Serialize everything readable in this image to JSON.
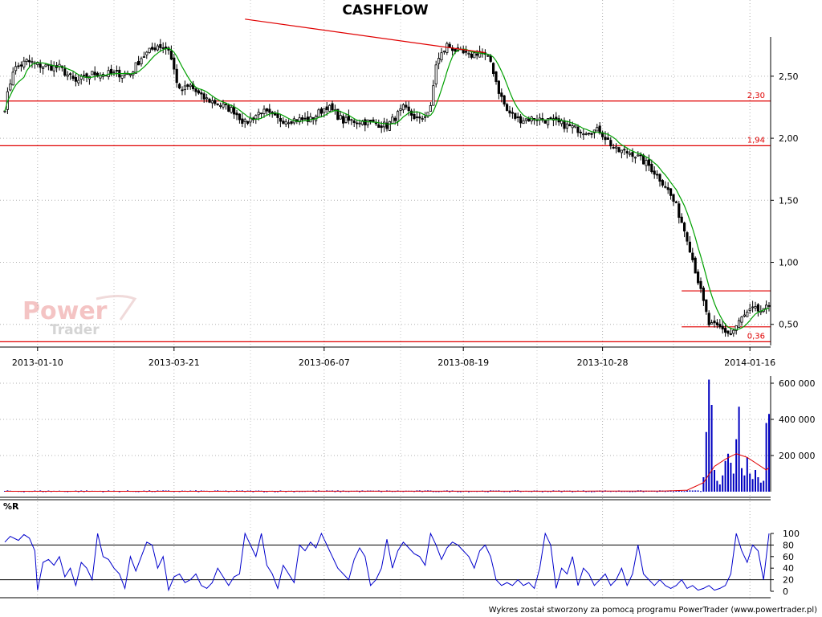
{
  "chart_data": [
    {
      "panel": "price",
      "type": "candlestick",
      "title": "CASHFLOW",
      "ylim": [
        0.33,
        2.92
      ],
      "y_ticks": [
        0.5,
        1.0,
        1.5,
        2.0,
        2.5
      ],
      "y_tick_labels": [
        "0,50",
        "1,00",
        "1,50",
        "2,00",
        "2,50"
      ],
      "x_tick_labels": [
        "2013-01-10",
        "2013-03-21",
        "2013-06-07",
        "2013-08-19",
        "2013-10-28",
        "2014-01-16"
      ],
      "x_tick_sessions": [
        12,
        62,
        117,
        168,
        219,
        273
      ],
      "sessions": 281,
      "grid": true,
      "levels": [
        {
          "label": "2,30",
          "value": 2.3
        },
        {
          "label": "1,94",
          "value": 1.94
        },
        {
          "label": "0,36",
          "value": 0.36
        }
      ],
      "short_levels": [
        {
          "value": 0.77,
          "from_session": 248,
          "to_session": 281
        },
        {
          "value": 0.48,
          "from_session": 248,
          "to_session": 281
        }
      ],
      "trendline": {
        "from": [
          88,
          2.96
        ],
        "to": [
          176,
          2.69
        ]
      },
      "close_waypoints": [
        [
          0,
          2.25
        ],
        [
          3,
          2.55
        ],
        [
          8,
          2.62
        ],
        [
          14,
          2.58
        ],
        [
          20,
          2.57
        ],
        [
          26,
          2.45
        ],
        [
          32,
          2.52
        ],
        [
          40,
          2.52
        ],
        [
          46,
          2.52
        ],
        [
          50,
          2.65
        ],
        [
          56,
          2.75
        ],
        [
          60,
          2.72
        ],
        [
          64,
          2.38
        ],
        [
          68,
          2.42
        ],
        [
          72,
          2.33
        ],
        [
          78,
          2.28
        ],
        [
          84,
          2.22
        ],
        [
          88,
          2.12
        ],
        [
          94,
          2.22
        ],
        [
          100,
          2.15
        ],
        [
          106,
          2.15
        ],
        [
          112,
          2.15
        ],
        [
          118,
          2.26
        ],
        [
          124,
          2.14
        ],
        [
          130,
          2.14
        ],
        [
          136,
          2.12
        ],
        [
          140,
          2.1
        ],
        [
          146,
          2.24
        ],
        [
          152,
          2.14
        ],
        [
          156,
          2.24
        ],
        [
          158,
          2.6
        ],
        [
          162,
          2.75
        ],
        [
          166,
          2.7
        ],
        [
          170,
          2.66
        ],
        [
          174,
          2.7
        ],
        [
          178,
          2.62
        ],
        [
          181,
          2.38
        ],
        [
          184,
          2.22
        ],
        [
          188,
          2.15
        ],
        [
          194,
          2.16
        ],
        [
          200,
          2.14
        ],
        [
          206,
          2.1
        ],
        [
          212,
          2.06
        ],
        [
          218,
          2.06
        ],
        [
          224,
          1.9
        ],
        [
          230,
          1.88
        ],
        [
          236,
          1.78
        ],
        [
          242,
          1.62
        ],
        [
          246,
          1.45
        ],
        [
          250,
          1.2
        ],
        [
          254,
          0.85
        ],
        [
          258,
          0.5
        ],
        [
          262,
          0.47
        ],
        [
          266,
          0.42
        ],
        [
          270,
          0.55
        ],
        [
          274,
          0.62
        ],
        [
          278,
          0.6
        ],
        [
          281,
          0.68
        ]
      ],
      "ma_line_color": "#00a000",
      "level_color": "#e00000",
      "candle_color": "#000000"
    },
    {
      "panel": "volume",
      "type": "bar",
      "ylim": [
        0,
        640000
      ],
      "y_ticks": [
        200000,
        400000,
        600000
      ],
      "y_tick_labels": [
        "200 000",
        "400 000",
        "600 000"
      ],
      "baseline": 5000,
      "spikes": [
        {
          "session": 256,
          "value": 80000
        },
        {
          "session": 257,
          "value": 330000
        },
        {
          "session": 258,
          "value": 620000
        },
        {
          "session": 259,
          "value": 480000
        },
        {
          "session": 260,
          "value": 120000
        },
        {
          "session": 261,
          "value": 60000
        },
        {
          "session": 262,
          "value": 40000
        },
        {
          "session": 263,
          "value": 90000
        },
        {
          "session": 264,
          "value": 170000
        },
        {
          "session": 265,
          "value": 210000
        },
        {
          "session": 266,
          "value": 160000
        },
        {
          "session": 267,
          "value": 100000
        },
        {
          "session": 268,
          "value": 290000
        },
        {
          "session": 269,
          "value": 470000
        },
        {
          "session": 270,
          "value": 130000
        },
        {
          "session": 271,
          "value": 90000
        },
        {
          "session": 272,
          "value": 190000
        },
        {
          "session": 273,
          "value": 100000
        },
        {
          "session": 274,
          "value": 70000
        },
        {
          "session": 275,
          "value": 120000
        },
        {
          "session": 276,
          "value": 80000
        },
        {
          "session": 277,
          "value": 50000
        },
        {
          "session": 278,
          "value": 60000
        },
        {
          "session": 279,
          "value": 380000
        },
        {
          "session": 280,
          "value": 430000
        }
      ],
      "ma_waypoints": [
        [
          0,
          2000
        ],
        [
          240,
          3000
        ],
        [
          250,
          8000
        ],
        [
          256,
          50000
        ],
        [
          260,
          140000
        ],
        [
          264,
          180000
        ],
        [
          268,
          210000
        ],
        [
          272,
          190000
        ],
        [
          276,
          150000
        ],
        [
          279,
          120000
        ],
        [
          281,
          145000
        ]
      ],
      "bar_color": "#0000c0",
      "ma_color": "#e00000"
    },
    {
      "panel": "oscillator",
      "type": "line",
      "title": "%R",
      "ylim": [
        0,
        100
      ],
      "y_ticks": [
        0,
        20,
        40,
        60,
        80,
        100
      ],
      "y_tick_labels": [
        "0",
        "20",
        "40",
        "60",
        "80",
        "100"
      ],
      "levels": [
        20,
        80
      ],
      "waypoints": [
        [
          0,
          85
        ],
        [
          2,
          95
        ],
        [
          5,
          88
        ],
        [
          7,
          98
        ],
        [
          9,
          92
        ],
        [
          11,
          70
        ],
        [
          12,
          2
        ],
        [
          14,
          50
        ],
        [
          16,
          55
        ],
        [
          18,
          45
        ],
        [
          20,
          60
        ],
        [
          22,
          25
        ],
        [
          24,
          40
        ],
        [
          26,
          10
        ],
        [
          28,
          50
        ],
        [
          30,
          40
        ],
        [
          32,
          20
        ],
        [
          34,
          100
        ],
        [
          36,
          60
        ],
        [
          38,
          55
        ],
        [
          40,
          40
        ],
        [
          42,
          30
        ],
        [
          44,
          5
        ],
        [
          46,
          60
        ],
        [
          48,
          35
        ],
        [
          50,
          60
        ],
        [
          52,
          85
        ],
        [
          54,
          80
        ],
        [
          56,
          40
        ],
        [
          58,
          60
        ],
        [
          60,
          2
        ],
        [
          62,
          25
        ],
        [
          64,
          30
        ],
        [
          66,
          15
        ],
        [
          68,
          20
        ],
        [
          70,
          30
        ],
        [
          72,
          10
        ],
        [
          74,
          5
        ],
        [
          76,
          15
        ],
        [
          78,
          40
        ],
        [
          80,
          25
        ],
        [
          82,
          10
        ],
        [
          84,
          25
        ],
        [
          86,
          30
        ],
        [
          88,
          100
        ],
        [
          90,
          80
        ],
        [
          92,
          60
        ],
        [
          94,
          100
        ],
        [
          96,
          45
        ],
        [
          98,
          30
        ],
        [
          100,
          5
        ],
        [
          102,
          45
        ],
        [
          104,
          30
        ],
        [
          106,
          15
        ],
        [
          108,
          80
        ],
        [
          110,
          70
        ],
        [
          112,
          85
        ],
        [
          114,
          75
        ],
        [
          116,
          100
        ],
        [
          118,
          80
        ],
        [
          120,
          60
        ],
        [
          122,
          40
        ],
        [
          124,
          30
        ],
        [
          126,
          20
        ],
        [
          128,
          55
        ],
        [
          130,
          75
        ],
        [
          132,
          60
        ],
        [
          134,
          10
        ],
        [
          136,
          20
        ],
        [
          138,
          40
        ],
        [
          140,
          90
        ],
        [
          142,
          40
        ],
        [
          144,
          70
        ],
        [
          146,
          85
        ],
        [
          148,
          75
        ],
        [
          150,
          65
        ],
        [
          152,
          60
        ],
        [
          154,
          45
        ],
        [
          156,
          100
        ],
        [
          158,
          80
        ],
        [
          160,
          55
        ],
        [
          162,
          75
        ],
        [
          164,
          85
        ],
        [
          166,
          80
        ],
        [
          168,
          70
        ],
        [
          170,
          60
        ],
        [
          172,
          40
        ],
        [
          174,
          70
        ],
        [
          176,
          80
        ],
        [
          178,
          60
        ],
        [
          180,
          20
        ],
        [
          182,
          10
        ],
        [
          184,
          15
        ],
        [
          186,
          10
        ],
        [
          188,
          20
        ],
        [
          190,
          10
        ],
        [
          192,
          15
        ],
        [
          194,
          5
        ],
        [
          196,
          40
        ],
        [
          198,
          100
        ],
        [
          200,
          80
        ],
        [
          202,
          5
        ],
        [
          204,
          40
        ],
        [
          206,
          30
        ],
        [
          208,
          60
        ],
        [
          210,
          10
        ],
        [
          212,
          40
        ],
        [
          214,
          30
        ],
        [
          216,
          10
        ],
        [
          218,
          20
        ],
        [
          220,
          30
        ],
        [
          222,
          10
        ],
        [
          224,
          20
        ],
        [
          226,
          40
        ],
        [
          228,
          10
        ],
        [
          230,
          30
        ],
        [
          232,
          80
        ],
        [
          234,
          30
        ],
        [
          236,
          20
        ],
        [
          238,
          10
        ],
        [
          240,
          20
        ],
        [
          242,
          10
        ],
        [
          244,
          5
        ],
        [
          246,
          10
        ],
        [
          248,
          20
        ],
        [
          250,
          5
        ],
        [
          252,
          10
        ],
        [
          254,
          2
        ],
        [
          256,
          5
        ],
        [
          258,
          10
        ],
        [
          260,
          2
        ],
        [
          262,
          5
        ],
        [
          264,
          10
        ],
        [
          266,
          30
        ],
        [
          268,
          100
        ],
        [
          270,
          70
        ],
        [
          272,
          50
        ],
        [
          274,
          80
        ],
        [
          276,
          70
        ],
        [
          278,
          20
        ],
        [
          280,
          100
        ],
        [
          281,
          60
        ]
      ],
      "line_color": "#0000cc"
    }
  ],
  "watermark": {
    "line1": "Power",
    "line2": "Trader"
  },
  "footer": "Wykres został stworzony za pomocą programu PowerTrader (www.powertrader.pl)"
}
